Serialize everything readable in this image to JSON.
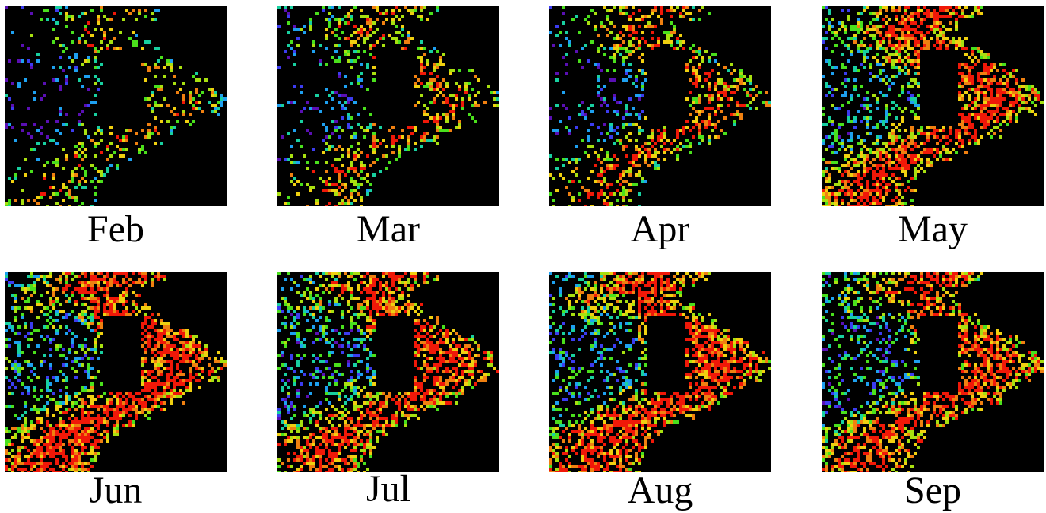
{
  "figure": {
    "background": "#ffffff",
    "map_background": "#000000",
    "colormap": [
      "#5a0fb4",
      "#3c3cf0",
      "#1ea0f0",
      "#18d0a0",
      "#4ae01c",
      "#a8e010",
      "#f0d010",
      "#f08010",
      "#f01808"
    ],
    "panels": [
      {
        "month": "Feb",
        "intensity": 0.22
      },
      {
        "month": "Mar",
        "intensity": 0.34
      },
      {
        "month": "Apr",
        "intensity": 0.42
      },
      {
        "month": "May",
        "intensity": 0.66
      },
      {
        "month": "Jun",
        "intensity": 0.72
      },
      {
        "month": "Jul",
        "intensity": 0.64
      },
      {
        "month": "Aug",
        "intensity": 0.7
      },
      {
        "month": "Sep",
        "intensity": 0.62
      }
    ]
  }
}
